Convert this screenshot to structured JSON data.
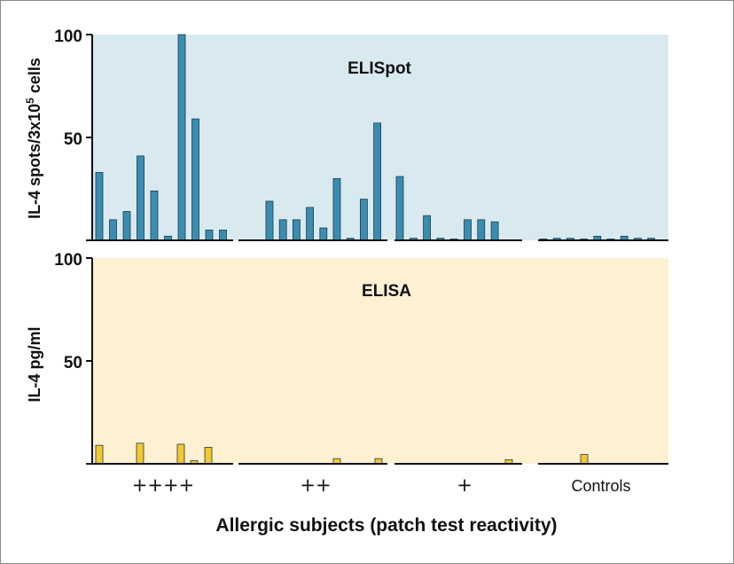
{
  "chart_data": [
    {
      "type": "bar",
      "title": "ELISpot",
      "ylabel": "IL-4 spots/3x10",
      "ylabel_exponent": "5",
      "ylabel_suffix": " cells",
      "ylim": [
        0,
        100
      ],
      "yticks": [
        "100",
        "50"
      ],
      "background": "#d9e9f0",
      "bar_color": "#3a8db0",
      "groups": [
        {
          "name": "++++",
          "values": [
            33,
            10,
            14,
            41,
            24,
            2,
            100,
            59,
            5,
            5
          ]
        },
        {
          "name": "++",
          "values": [
            19,
            10,
            10,
            16,
            6,
            30,
            1,
            20,
            57
          ]
        },
        {
          "name": "+",
          "values": [
            31,
            1,
            12,
            1,
            0.5,
            10,
            10,
            9
          ]
        },
        {
          "name": "Controls",
          "values": [
            0.5,
            1,
            1,
            0.5,
            2,
            0.5,
            2,
            1,
            1
          ]
        }
      ]
    },
    {
      "type": "bar",
      "title": "ELISA",
      "ylabel": "IL-4 pg/ml",
      "ylim": [
        0,
        100
      ],
      "yticks": [
        "100",
        "50"
      ],
      "background": "#fdf1d2",
      "bar_color": "#f4c832",
      "groups": [
        {
          "name": "++++",
          "values": [
            9,
            10,
            9.5,
            1.5,
            8
          ]
        },
        {
          "name": "++",
          "values": [
            2.5,
            2.5
          ]
        },
        {
          "name": "+",
          "values": [
            2
          ]
        },
        {
          "name": "Controls",
          "values": [
            4.5
          ]
        }
      ]
    }
  ],
  "xlabel": "Allergic subjects (patch test reactivity)",
  "group_labels": [
    "++++",
    "++",
    "+",
    "Controls"
  ]
}
